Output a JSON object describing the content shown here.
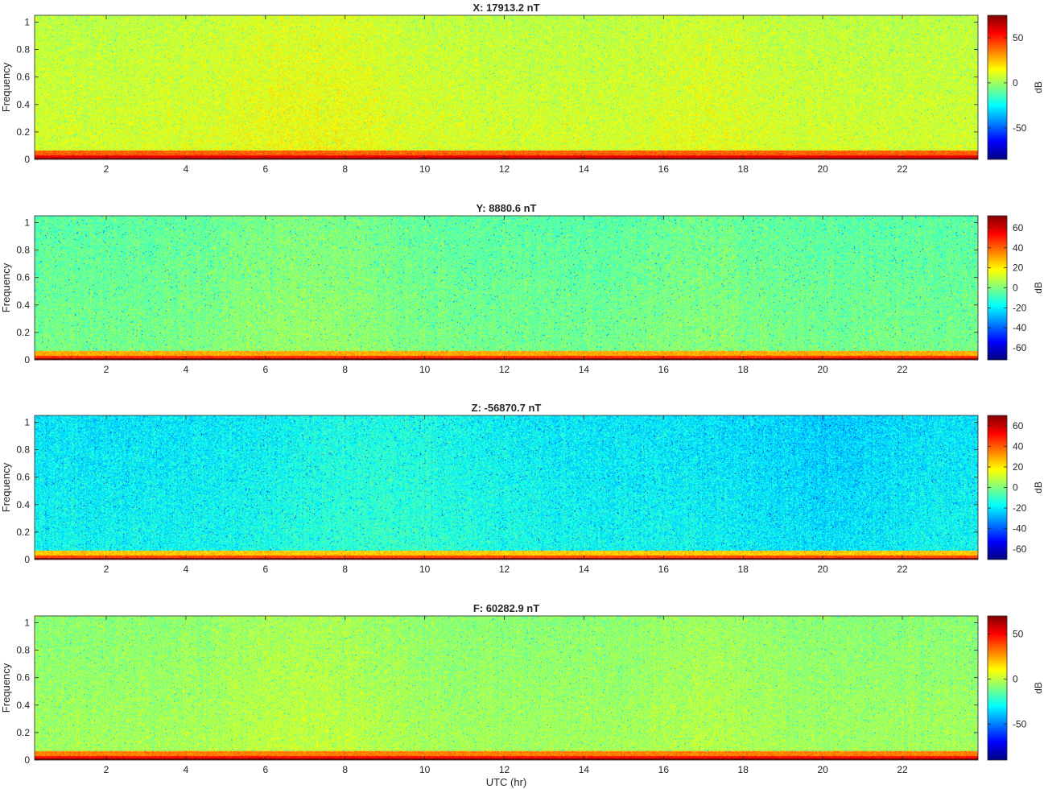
{
  "colors": {
    "jet": [
      "#00007f",
      "#0000ff",
      "#007fff",
      "#00ffff",
      "#7fff7f",
      "#ffff00",
      "#ff7f00",
      "#ff0000",
      "#7f0000"
    ],
    "axis": "#262626"
  },
  "shared": {
    "xlabel": "UTC (hr)",
    "ylabel": "Frequency",
    "colorbar_label": "dB",
    "xlim": [
      0.2,
      23.9
    ],
    "ylim": [
      0,
      1.05
    ],
    "xticks": [
      2,
      4,
      6,
      8,
      10,
      12,
      14,
      16,
      18,
      20,
      22
    ],
    "xtick_labels": [
      "2",
      "4",
      "6",
      "8",
      "10",
      "12",
      "14",
      "16",
      "18",
      "20",
      "22"
    ],
    "yticks": [
      0,
      0.2,
      0.4,
      0.6,
      0.8,
      1
    ],
    "ytick_labels": [
      "0",
      "0.2",
      "0.4",
      "0.6",
      "0.8",
      "1"
    ]
  },
  "chart_data": [
    {
      "type": "heatmap",
      "title": "X: 17913.2 nT",
      "xlabel": "",
      "ylabel": "Frequency",
      "xlim": [
        0.2,
        23.9
      ],
      "ylim": [
        0,
        1.05
      ],
      "colorbar": {
        "label": "dB",
        "clim": [
          -85,
          75
        ],
        "ticks": [
          -50,
          0,
          50
        ],
        "tick_labels": [
          "-50",
          "0",
          "50"
        ]
      },
      "levels": {
        "background_db": 5,
        "low_freq_band_db": 40,
        "dc_db": 75
      },
      "grid": false
    },
    {
      "type": "heatmap",
      "title": "Y: 8880.6 nT",
      "xlabel": "",
      "ylabel": "Frequency",
      "xlim": [
        0.2,
        23.9
      ],
      "ylim": [
        0,
        1.05
      ],
      "colorbar": {
        "label": "dB",
        "clim": [
          -72,
          72
        ],
        "ticks": [
          -60,
          -40,
          -20,
          0,
          20,
          40,
          60
        ],
        "tick_labels": [
          "-60",
          "-40",
          "-20",
          "0",
          "20",
          "40",
          "60"
        ]
      },
      "levels": {
        "background_db": -5,
        "low_freq_band_db": 30,
        "dc_db": 70
      },
      "grid": false
    },
    {
      "type": "heatmap",
      "title": "Z: -56870.7 nT",
      "xlabel": "",
      "ylabel": "Frequency",
      "xlim": [
        0.2,
        23.9
      ],
      "ylim": [
        0,
        1.05
      ],
      "colorbar": {
        "label": "dB",
        "clim": [
          -70,
          70
        ],
        "ticks": [
          -60,
          -40,
          -20,
          0,
          20,
          40,
          60
        ],
        "tick_labels": [
          "-60",
          "-40",
          "-20",
          "0",
          "20",
          "40",
          "60"
        ]
      },
      "levels": {
        "background_db": -20,
        "low_freq_band_db": 25,
        "dc_db": 68
      },
      "grid": false
    },
    {
      "type": "heatmap",
      "title": "F: 60282.9 nT",
      "xlabel": "UTC (hr)",
      "ylabel": "Frequency",
      "xlim": [
        0.2,
        23.9
      ],
      "ylim": [
        0,
        1.05
      ],
      "colorbar": {
        "label": "dB",
        "clim": [
          -90,
          70
        ],
        "ticks": [
          -50,
          0,
          50
        ],
        "tick_labels": [
          "-50",
          "0",
          "50"
        ]
      },
      "levels": {
        "background_db": -8,
        "low_freq_band_db": 30,
        "dc_db": 70
      },
      "grid": false
    }
  ]
}
